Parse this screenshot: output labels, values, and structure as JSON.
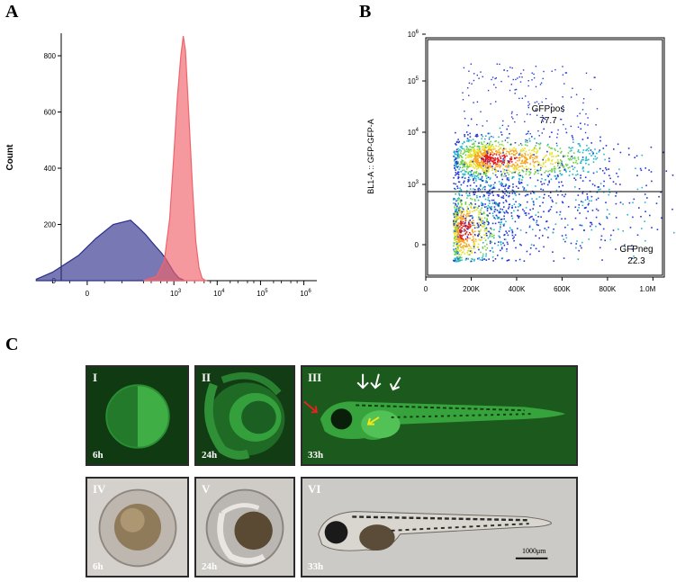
{
  "panels": {
    "a": "A",
    "b": "B",
    "c": "C"
  },
  "chart_data": [
    {
      "type": "area",
      "panel": "A",
      "ylabel": "Count",
      "xscale": "biexponential",
      "ylim": [
        0,
        880
      ],
      "yticks": [
        0,
        200,
        400,
        600,
        800
      ],
      "xtick_labels": [
        "0",
        "10^3",
        "10^4",
        "10^5",
        "10^6"
      ],
      "series": [
        {
          "color": "#2e2f8c",
          "points": [
            [
              -150,
              5
            ],
            [
              -80,
              30
            ],
            [
              -20,
              90
            ],
            [
              20,
              150
            ],
            [
              60,
              200
            ],
            [
              100,
              215
            ],
            [
              150,
              190
            ],
            [
              220,
              165
            ],
            [
              300,
              140
            ],
            [
              400,
              118
            ],
            [
              520,
              98
            ],
            [
              650,
              78
            ],
            [
              800,
              55
            ],
            [
              1000,
              30
            ],
            [
              1300,
              10
            ],
            [
              1700,
              2
            ]
          ]
        },
        {
          "color": "#f0636b",
          "points": [
            [
              200,
              0
            ],
            [
              400,
              15
            ],
            [
              600,
              70
            ],
            [
              800,
              220
            ],
            [
              1000,
              450
            ],
            [
              1200,
              650
            ],
            [
              1450,
              800
            ],
            [
              1650,
              870
            ],
            [
              1850,
              820
            ],
            [
              2200,
              600
            ],
            [
              2700,
              330
            ],
            [
              3200,
              140
            ],
            [
              3800,
              45
            ],
            [
              4500,
              8
            ],
            [
              5500,
              0
            ]
          ]
        }
      ]
    },
    {
      "type": "scatter",
      "panel": "B",
      "xlabel": "",
      "ylabel": "BL1-A :: GFP-GFP-A",
      "xlim": [
        0,
        1050000
      ],
      "xtick_labels": [
        "0",
        "200K",
        "400K",
        "600K",
        "800K",
        "1.0M"
      ],
      "ytick_labels": [
        "0",
        "10^3",
        "10^4",
        "10^5",
        "10^6"
      ],
      "gates": [
        {
          "name": "GFPpos",
          "percent": "77.7"
        },
        {
          "name": "GFPneg",
          "percent": "22.3"
        }
      ]
    }
  ],
  "microscopy": {
    "top": [
      {
        "numeral": "I",
        "time": "6h"
      },
      {
        "numeral": "II",
        "time": "24h"
      },
      {
        "numeral": "III",
        "time": "33h"
      }
    ],
    "bottom": [
      {
        "numeral": "IV",
        "time": "6h"
      },
      {
        "numeral": "V",
        "time": "24h"
      },
      {
        "numeral": "VI",
        "time": "33h"
      }
    ],
    "scale_bar": "1000μm"
  }
}
